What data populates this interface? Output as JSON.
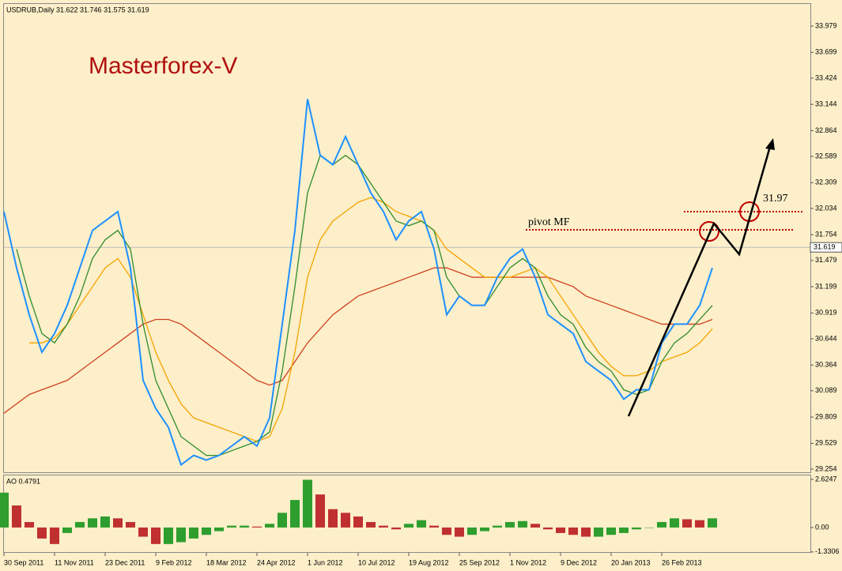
{
  "chart_data": [
    {
      "type": "line",
      "title": "USDRUB,Daily  31.622 31.746 31.575 31.619",
      "brand": "Masterforex-V",
      "annotations": [
        "pivot MF",
        "31.97"
      ],
      "price_label": 31.619,
      "categories": [
        "30 Sep 2011",
        null,
        null,
        null,
        "11 Nov 2011",
        null,
        null,
        null,
        "23 Dec 2011",
        null,
        null,
        null,
        "9 Feb 2012",
        null,
        null,
        null,
        "18 Mar 2012",
        null,
        null,
        null,
        "24 Apr 2012",
        null,
        null,
        null,
        "1 Jun 2012",
        null,
        null,
        null,
        "10 Jul 2012",
        null,
        null,
        null,
        "19 Aug 2012",
        null,
        null,
        null,
        "25 Sep 2012",
        null,
        null,
        null,
        "1 Nov 2012",
        null,
        null,
        null,
        "9 Dec 2012",
        null,
        null,
        null,
        "20 Jan 2013",
        null,
        null,
        null,
        "26 Feb 2013",
        null,
        null,
        null,
        null
      ],
      "series": [
        {
          "color": "#d04020",
          "values": [
            29.85,
            29.95,
            30.05,
            30.1,
            30.15,
            30.2,
            30.3,
            30.4,
            30.5,
            30.6,
            30.7,
            30.8,
            30.85,
            30.85,
            30.8,
            30.7,
            30.6,
            30.5,
            30.4,
            30.3,
            30.2,
            30.15,
            30.2,
            30.4,
            30.6,
            30.75,
            30.9,
            31.0,
            31.1,
            31.15,
            31.2,
            31.25,
            31.3,
            31.35,
            31.4,
            31.4,
            31.35,
            31.3,
            31.3,
            31.3,
            31.3,
            31.3,
            31.3,
            31.3,
            31.25,
            31.2,
            31.1,
            31.05,
            31.0,
            30.95,
            30.9,
            30.85,
            30.8,
            30.8,
            30.8,
            30.8,
            30.85
          ]
        },
        {
          "color": "#f5a300",
          "values": [
            null,
            null,
            30.6,
            30.6,
            30.65,
            30.8,
            31.0,
            31.2,
            31.4,
            31.5,
            31.3,
            30.9,
            30.5,
            30.2,
            29.95,
            29.8,
            29.75,
            29.7,
            29.65,
            29.6,
            29.55,
            29.6,
            29.9,
            30.5,
            31.3,
            31.7,
            31.9,
            32.0,
            32.1,
            32.15,
            32.1,
            32.0,
            31.95,
            31.9,
            31.8,
            31.6,
            31.5,
            31.4,
            31.3,
            31.3,
            31.3,
            31.35,
            31.4,
            31.3,
            31.1,
            30.9,
            30.7,
            30.5,
            30.35,
            30.25,
            30.25,
            30.3,
            30.4,
            30.45,
            30.5,
            30.6,
            30.75
          ]
        },
        {
          "color": "#2e8b2e",
          "values": [
            null,
            31.6,
            31.1,
            30.7,
            30.6,
            30.8,
            31.1,
            31.5,
            31.7,
            31.8,
            31.6,
            30.8,
            30.2,
            29.9,
            29.6,
            29.5,
            29.4,
            29.4,
            29.45,
            29.5,
            29.55,
            29.65,
            30.3,
            31.2,
            32.2,
            32.6,
            32.5,
            32.6,
            32.5,
            32.3,
            32.1,
            31.9,
            31.85,
            31.9,
            31.8,
            31.3,
            31.1,
            31.0,
            31.0,
            31.2,
            31.4,
            31.5,
            31.4,
            31.1,
            30.9,
            30.8,
            30.55,
            30.4,
            30.3,
            30.1,
            30.05,
            30.1,
            30.4,
            30.6,
            30.7,
            30.85,
            31.0
          ]
        },
        {
          "color": "#1e90ff",
          "values": [
            32.0,
            31.4,
            30.9,
            30.5,
            30.7,
            31.0,
            31.4,
            31.8,
            31.9,
            32.0,
            31.4,
            30.2,
            29.9,
            29.7,
            29.3,
            29.4,
            29.35,
            29.4,
            29.5,
            29.6,
            29.5,
            29.8,
            30.8,
            31.8,
            33.2,
            32.6,
            32.5,
            32.8,
            32.5,
            32.2,
            32.0,
            31.7,
            31.9,
            32.0,
            31.6,
            30.9,
            31.1,
            31.0,
            31.0,
            31.3,
            31.5,
            31.6,
            31.3,
            30.9,
            30.8,
            30.7,
            30.4,
            30.3,
            30.2,
            30.0,
            30.1,
            30.1,
            30.6,
            30.8,
            30.8,
            31.0,
            31.4
          ]
        }
      ],
      "ylim": [
        29.22,
        34.215
      ],
      "yticks": [
        33.979,
        33.699,
        33.424,
        33.144,
        32.864,
        32.589,
        32.309,
        32.034,
        31.754,
        31.479,
        31.199,
        30.919,
        30.644,
        30.364,
        30.089,
        29.809,
        29.529,
        29.254
      ]
    },
    {
      "type": "bar",
      "title": "AO 0.4791",
      "up_color": "#2e9e2e",
      "down_color": "#c03030",
      "values": [
        1.9,
        1.2,
        0.3,
        -0.6,
        -0.9,
        -0.3,
        0.3,
        0.5,
        0.6,
        0.5,
        0.3,
        -0.5,
        -0.9,
        -0.9,
        -0.8,
        -0.6,
        -0.4,
        -0.2,
        0.1,
        0.1,
        0.05,
        0.2,
        0.8,
        1.5,
        2.6,
        1.8,
        1.0,
        0.8,
        0.6,
        0.3,
        0.1,
        -0.1,
        0.2,
        0.4,
        0.1,
        -0.4,
        -0.5,
        -0.4,
        -0.2,
        0.1,
        0.3,
        0.35,
        0.2,
        -0.1,
        -0.3,
        -0.4,
        -0.5,
        -0.5,
        -0.4,
        -0.3,
        -0.1,
        0.0,
        0.3,
        0.5,
        0.45,
        0.4,
        0.5
      ],
      "ylim": [
        -1.38,
        2.88
      ],
      "yticks": [
        2.6247,
        {
          "value": 0,
          "label": "0.00"
        },
        -1.3306
      ]
    }
  ]
}
